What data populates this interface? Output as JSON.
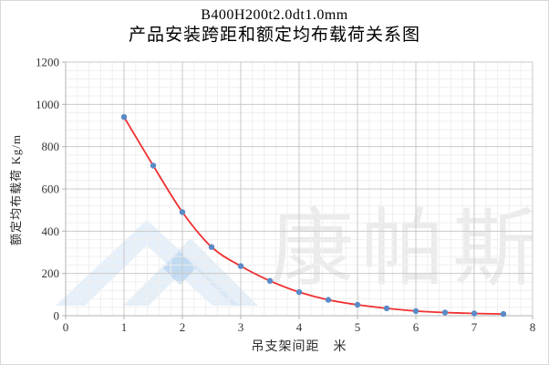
{
  "title": {
    "line1": "B400H200t2.0dt1.0mm",
    "line2": "产品安装跨距和额定均布载荷关系图"
  },
  "watermark": {
    "text": "康帕斯"
  },
  "chart_data": {
    "type": "scatter",
    "title": "B400H200t2.0dt1.0mm 产品安装跨距和额定均布载荷关系图",
    "xlabel": "吊支架间距　米",
    "ylabel": "额定均布载荷 Kg/m",
    "x": [
      1,
      1.5,
      2,
      2.5,
      3,
      3.5,
      4,
      4.5,
      5,
      5.5,
      6,
      6.5,
      7,
      7.5
    ],
    "series": [
      {
        "name": "额定均布载荷",
        "values": [
          940,
          710,
          490,
          325,
          235,
          165,
          112,
          75,
          52,
          35,
          22,
          15,
          11,
          8
        ]
      }
    ],
    "fit_curve": "smooth red curve through data points",
    "xlim": [
      0,
      8
    ],
    "ylim": [
      0,
      1200
    ],
    "x_major_ticks": [
      0,
      1,
      2,
      3,
      4,
      5,
      6,
      7,
      8
    ],
    "y_major_ticks": [
      0,
      200,
      400,
      600,
      800,
      1000,
      1200
    ],
    "x_minor_step": 0.2,
    "y_minor_step": 40,
    "grid": "major and minor gridlines on",
    "legend": "none",
    "colors": {
      "point": "#5b8ac6",
      "curve": "#f03030",
      "grid_major": "#c9c9c9",
      "grid_minor": "#efefef",
      "axis": "#b3b3b3",
      "tick_label": "#333333",
      "watermark_text": "#ebebeb",
      "watermark_blue_light": "#e3eef9",
      "watermark_blue_mid": "#cfe2f3",
      "watermark_diamond": "#b9d6f0"
    }
  }
}
